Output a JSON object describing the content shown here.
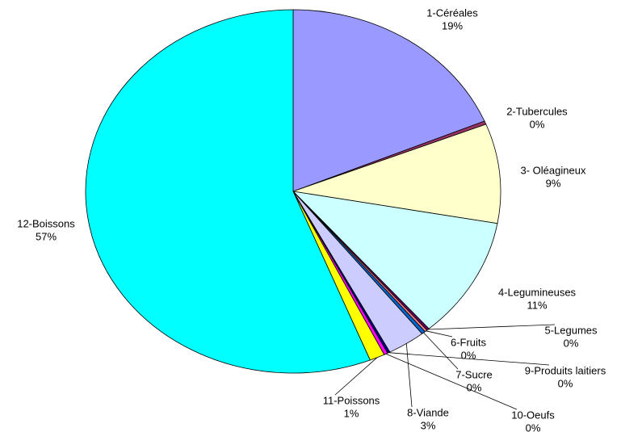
{
  "chart_data": {
    "type": "pie",
    "categories": [
      "1-Céréales",
      "2-Tubercules",
      "3- Oléagineux",
      "4-Legumineuses",
      "5-Legumes",
      "6-Fruits",
      "7-Sucre",
      "8-Viande",
      "9-Produits laitiers",
      "10-Oeufs",
      "11-Poissons",
      "12-Boissons"
    ],
    "values": [
      19,
      0.3,
      9,
      11,
      0.2,
      0.2,
      0.3,
      3,
      0.2,
      0.3,
      1.2,
      57
    ],
    "value_labels": [
      "19%",
      "0%",
      "9%",
      "11%",
      "0%",
      "0%",
      "0%",
      "3%",
      "0%",
      "0%",
      "1%",
      "57%"
    ],
    "colors": [
      "#9999ff",
      "#993366",
      "#ffffcc",
      "#ccffff",
      "#660066",
      "#ff8080",
      "#0066cc",
      "#ccccff",
      "#000080",
      "#ff00ff",
      "#ffff00",
      "#00ffff"
    ]
  }
}
